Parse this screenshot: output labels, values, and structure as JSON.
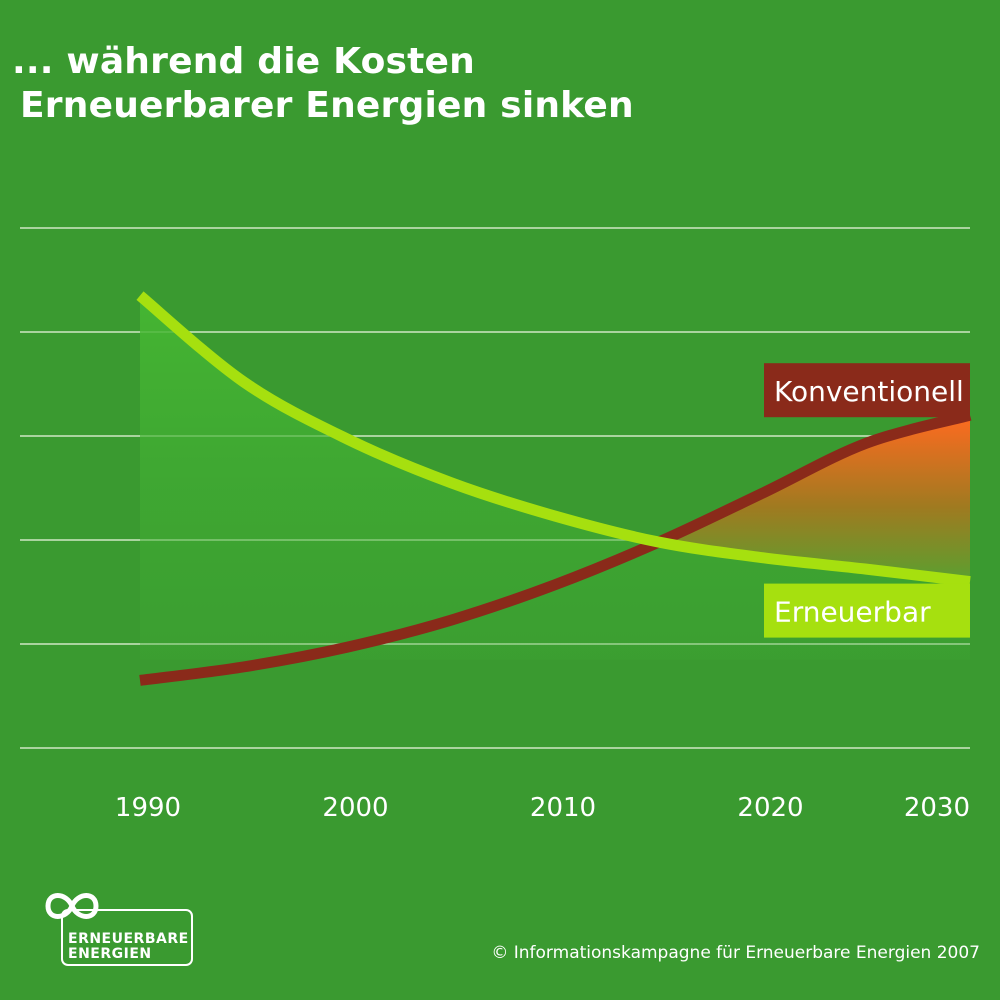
{
  "title": {
    "line1": "... während die Kosten",
    "line2": "Erneuerbarer Energien sinken"
  },
  "footer": {
    "copyright": "© Informationskampagne für Erneuerbare Energien 2007"
  },
  "logo": {
    "line1": "ERNEUERBARE",
    "line2": "ENERGIEN"
  },
  "colors": {
    "background": "#3a9a30",
    "renewable": "#a6e00f",
    "conventional": "#8a2a1a",
    "label_conventional_bg": "#8a2a1a",
    "label_renewable_bg": "#a6e00f",
    "gap_fill_top": "#ff6a20",
    "area_fill": "#46b833",
    "grid": "#cfe8c4"
  },
  "chart_data": {
    "type": "line",
    "x": [
      1990,
      1995,
      2000,
      2005,
      2010,
      2015,
      2020,
      2025,
      2030
    ],
    "xticks": [
      1990,
      2000,
      2010,
      2020,
      2030
    ],
    "xlim": [
      1990,
      2030
    ],
    "ylim": [
      0,
      5
    ],
    "grid": true,
    "series": [
      {
        "name": "Konventionell",
        "values": [
          0.65,
          0.78,
          0.97,
          1.23,
          1.57,
          1.98,
          2.45,
          2.93,
          3.2
        ]
      },
      {
        "name": "Erneuerbar",
        "values": [
          4.35,
          3.52,
          2.97,
          2.55,
          2.23,
          1.98,
          1.83,
          1.72,
          1.6
        ]
      }
    ]
  }
}
